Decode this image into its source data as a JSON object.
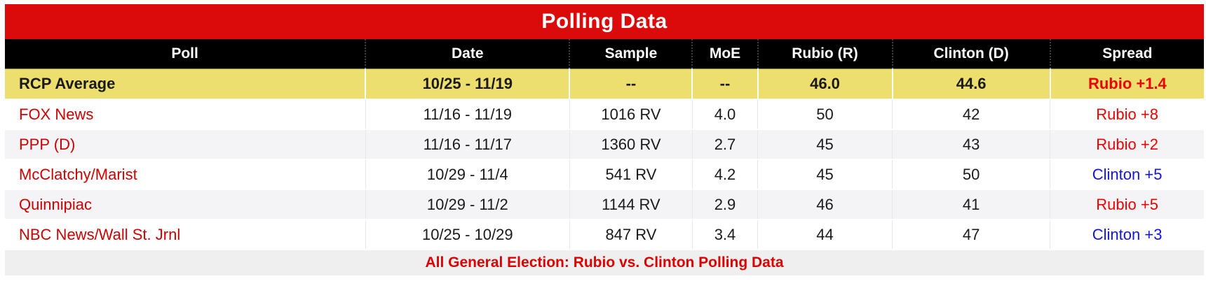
{
  "title": "Polling Data",
  "columns": [
    "Poll",
    "Date",
    "Sample",
    "MoE",
    "Rubio (R)",
    "Clinton (D)",
    "Spread"
  ],
  "rcp_average": {
    "poll": "RCP Average",
    "date": "10/25 - 11/19",
    "sample": "--",
    "moe": "--",
    "rubio": "46.0",
    "clinton": "44.6",
    "spread": "Rubio +1.4",
    "spread_winner": "rubio"
  },
  "rows": [
    {
      "poll": "FOX News",
      "date": "11/16 - 11/19",
      "sample": "1016 RV",
      "moe": "4.0",
      "rubio": "50",
      "clinton": "42",
      "spread": "Rubio +8",
      "spread_winner": "rubio"
    },
    {
      "poll": "PPP (D)",
      "date": "11/16 - 11/17",
      "sample": "1360 RV",
      "moe": "2.7",
      "rubio": "45",
      "clinton": "43",
      "spread": "Rubio +2",
      "spread_winner": "rubio"
    },
    {
      "poll": "McClatchy/Marist",
      "date": "10/29 - 11/4",
      "sample": "541 RV",
      "moe": "4.2",
      "rubio": "45",
      "clinton": "50",
      "spread": "Clinton +5",
      "spread_winner": "clinton"
    },
    {
      "poll": "Quinnipiac",
      "date": "10/29 - 11/2",
      "sample": "1144 RV",
      "moe": "2.9",
      "rubio": "46",
      "clinton": "41",
      "spread": "Rubio +5",
      "spread_winner": "rubio"
    },
    {
      "poll": "NBC News/Wall St. Jrnl",
      "date": "10/25 - 10/29",
      "sample": "847 RV",
      "moe": "3.4",
      "rubio": "44",
      "clinton": "47",
      "spread": "Clinton +3",
      "spread_winner": "clinton"
    }
  ],
  "footer": "All General Election: Rubio vs. Clinton Polling Data",
  "colors": {
    "banner_red": "#dc0b0b",
    "header_black": "#000000",
    "rcp_row_yellow": "#ecdf6e",
    "poll_link_red": "#cc0000",
    "rubio_spread_red": "#ee0000",
    "clinton_spread_blue": "#1414e8",
    "alt_row_gray": "#f4f4f6",
    "footer_gray": "#efeff0",
    "footer_text_red": "#dd0000"
  }
}
